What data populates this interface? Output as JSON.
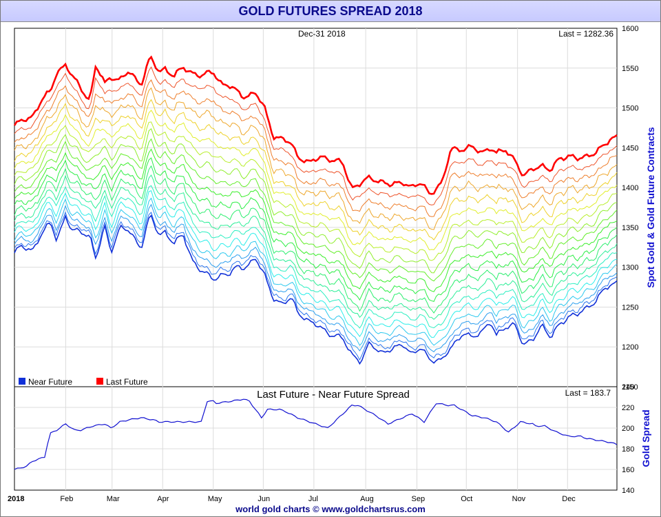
{
  "page": {
    "title": "GOLD FUTURES SPREAD 2018",
    "footer": "world gold charts © www.goldchartsrus.com"
  },
  "colors": {
    "last_future": "#ff0000",
    "near_future": "#1030d8",
    "spread": "#1010d0",
    "title_text": "#0a0a8c"
  },
  "chart_data": [
    {
      "type": "line",
      "panel": "main",
      "date_label": "Dec-31  2018",
      "last_value_label": "Last = 1282.36",
      "ylabel": "Spot Gold & Gold Future Contracts",
      "ylim": [
        1150,
        1600
      ],
      "yticks": [
        1150,
        1200,
        1250,
        1300,
        1350,
        1400,
        1450,
        1500,
        1550,
        1600
      ],
      "legend": [
        {
          "name": "Near Future",
          "color": "#1030d8"
        },
        {
          "name": "Last Future",
          "color": "#ff0000"
        }
      ],
      "intermediate_contracts": 17,
      "series": [
        {
          "name": "Near Future",
          "t": [
            0,
            0.01,
            0.03,
            0.045,
            0.06,
            0.07,
            0.085,
            0.095,
            0.11,
            0.125,
            0.135,
            0.15,
            0.16,
            0.175,
            0.19,
            0.21,
            0.225,
            0.24,
            0.25,
            0.265,
            0.28,
            0.295,
            0.31,
            0.33,
            0.345,
            0.355,
            0.37,
            0.38,
            0.4,
            0.415,
            0.43,
            0.445,
            0.46,
            0.47,
            0.49,
            0.51,
            0.525,
            0.545,
            0.56,
            0.575,
            0.59,
            0.61,
            0.625,
            0.645,
            0.66,
            0.675,
            0.69,
            0.71,
            0.725,
            0.745,
            0.76,
            0.775,
            0.79,
            0.8,
            0.815,
            0.83,
            0.845,
            0.86,
            0.875,
            0.89,
            0.905,
            0.92,
            0.935,
            0.95,
            0.965,
            0.98,
            0.99,
            1.0
          ],
          "values": [
            1318,
            1325,
            1322,
            1342,
            1355,
            1335,
            1365,
            1345,
            1345,
            1340,
            1310,
            1350,
            1320,
            1350,
            1345,
            1325,
            1365,
            1340,
            1345,
            1330,
            1340,
            1310,
            1295,
            1285,
            1292,
            1290,
            1300,
            1300,
            1310,
            1290,
            1262,
            1252,
            1262,
            1245,
            1230,
            1225,
            1215,
            1210,
            1192,
            1180,
            1205,
            1193,
            1195,
            1205,
            1190,
            1198,
            1185,
            1182,
            1200,
            1218,
            1210,
            1220,
            1232,
            1213,
            1225,
            1230,
            1200,
            1210,
            1228,
            1210,
            1230,
            1238,
            1240,
            1250,
            1258,
            1272,
            1278,
            1282
          ]
        },
        {
          "name": "Last Future",
          "t": [
            0,
            0.01,
            0.03,
            0.045,
            0.06,
            0.07,
            0.085,
            0.095,
            0.11,
            0.125,
            0.135,
            0.15,
            0.16,
            0.175,
            0.19,
            0.21,
            0.225,
            0.24,
            0.25,
            0.265,
            0.28,
            0.295,
            0.31,
            0.33,
            0.345,
            0.355,
            0.37,
            0.38,
            0.4,
            0.415,
            0.43,
            0.445,
            0.46,
            0.47,
            0.49,
            0.51,
            0.525,
            0.545,
            0.56,
            0.575,
            0.59,
            0.61,
            0.625,
            0.645,
            0.66,
            0.675,
            0.69,
            0.71,
            0.725,
            0.745,
            0.76,
            0.775,
            0.79,
            0.8,
            0.815,
            0.83,
            0.845,
            0.86,
            0.875,
            0.89,
            0.905,
            0.92,
            0.935,
            0.95,
            0.965,
            0.98,
            0.99,
            1.0
          ],
          "values": [
            1478,
            1482,
            1490,
            1510,
            1520,
            1545,
            1555,
            1540,
            1525,
            1510,
            1553,
            1530,
            1540,
            1535,
            1545,
            1530,
            1563,
            1545,
            1550,
            1540,
            1550,
            1545,
            1540,
            1545,
            1530,
            1528,
            1520,
            1515,
            1518,
            1500,
            1465,
            1460,
            1455,
            1440,
            1430,
            1440,
            1435,
            1430,
            1400,
            1405,
            1412,
            1408,
            1402,
            1408,
            1400,
            1405,
            1393,
            1405,
            1450,
            1448,
            1450,
            1445,
            1450,
            1442,
            1448,
            1436,
            1412,
            1425,
            1428,
            1420,
            1438,
            1440,
            1435,
            1440,
            1445,
            1452,
            1462,
            1465
          ]
        }
      ]
    },
    {
      "type": "line",
      "panel": "spread",
      "title": "Last Future - Near Future Spread",
      "last_value_label": "Last = 183.7",
      "ylabel": "Gold Spread",
      "ylim": [
        140,
        240
      ],
      "yticks": [
        140,
        160,
        180,
        200,
        220,
        240
      ],
      "x_ticks": [
        "2018",
        "Feb",
        "Mar",
        "Apr",
        "May",
        "Jun",
        "Jul",
        "Aug",
        "Sep",
        "Oct",
        "Nov",
        "Dec"
      ],
      "x_tick_positions": [
        0.0,
        0.085,
        0.162,
        0.246,
        0.33,
        0.413,
        0.497,
        0.583,
        0.668,
        0.75,
        0.835,
        0.918
      ],
      "series": [
        {
          "name": "Spread",
          "t": [
            0,
            0.02,
            0.03,
            0.05,
            0.055,
            0.06,
            0.07,
            0.085,
            0.1,
            0.11,
            0.13,
            0.15,
            0.16,
            0.175,
            0.19,
            0.21,
            0.23,
            0.24,
            0.25,
            0.27,
            0.29,
            0.31,
            0.32,
            0.33,
            0.335,
            0.36,
            0.38,
            0.39,
            0.41,
            0.42,
            0.44,
            0.45,
            0.47,
            0.49,
            0.5,
            0.52,
            0.56,
            0.57,
            0.6,
            0.62,
            0.66,
            0.68,
            0.7,
            0.72,
            0.73,
            0.76,
            0.78,
            0.8,
            0.82,
            0.84,
            0.86,
            0.865,
            0.88,
            0.9,
            0.92,
            0.94,
            0.95,
            0.97,
            0.99,
            1.0
          ],
          "values": [
            160,
            163,
            168,
            172,
            185,
            195,
            198,
            204,
            198,
            198,
            202,
            204,
            200,
            206,
            208,
            210,
            208,
            206,
            206,
            206,
            206,
            206,
            226,
            226,
            224,
            226,
            228,
            226,
            210,
            218,
            218,
            216,
            210,
            206,
            204,
            200,
            222,
            222,
            212,
            204,
            214,
            206,
            224,
            222,
            222,
            212,
            210,
            206,
            196,
            206,
            204,
            202,
            202,
            196,
            192,
            192,
            190,
            188,
            186,
            184
          ]
        }
      ]
    }
  ]
}
